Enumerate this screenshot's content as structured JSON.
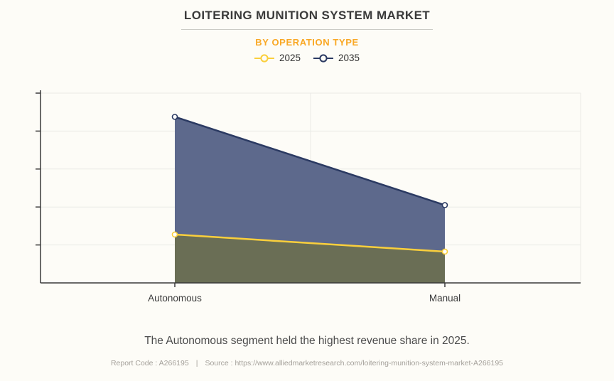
{
  "header": {
    "title": "LOITERING MUNITION SYSTEM MARKET",
    "subtitle": "BY OPERATION TYPE"
  },
  "chart_data": {
    "type": "area",
    "title": "LOITERING MUNITION SYSTEM MARKET",
    "subtitle": "BY OPERATION TYPE",
    "categories": [
      "Autonomous",
      "Manual"
    ],
    "series": [
      {
        "name": "2025",
        "values": [
          0.255,
          0.165
        ],
        "line_color": "#FACF3C",
        "overlap_fill": "#6A6E55"
      },
      {
        "name": "2035",
        "values": [
          0.875,
          0.41
        ],
        "line_color": "#2B3A62",
        "area_fill": "#5D698C"
      }
    ],
    "ylim": [
      0,
      1.05
    ],
    "grid_y": [
      0.2,
      0.4,
      0.6,
      0.8,
      1.0
    ],
    "yaxis_labels_visible": false,
    "note": "y-axis has tick marks but no numeric labels; series values are estimated fractions of full axis height",
    "legend_position": "top",
    "xlabel": "",
    "ylabel": ""
  },
  "footer": {
    "summary": "The Autonomous segment held the highest revenue share in 2025.",
    "report_code": "Report Code : A266195",
    "separator": "|",
    "source": "Source : https://www.alliedmarketresearch.com/loitering-munition-system-market-A266195"
  },
  "colors": {
    "background": "#FDFCF7",
    "accent_orange": "#F9A825",
    "axis": "#3A3A3A",
    "grid": "#EAEAE5",
    "title_text": "#3B3B3B",
    "summary_text": "#4B4B4B",
    "report_text": "#A4A09A"
  }
}
